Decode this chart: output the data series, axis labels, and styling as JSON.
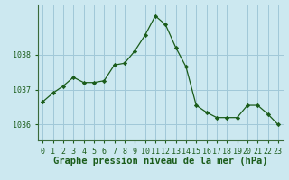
{
  "x": [
    0,
    1,
    2,
    3,
    4,
    5,
    6,
    7,
    8,
    9,
    10,
    11,
    12,
    13,
    14,
    15,
    16,
    17,
    18,
    19,
    20,
    21,
    22,
    23
  ],
  "y": [
    1036.65,
    1036.9,
    1037.1,
    1037.35,
    1037.2,
    1037.2,
    1037.25,
    1037.7,
    1037.75,
    1038.1,
    1038.55,
    1039.1,
    1038.85,
    1038.2,
    1037.65,
    1036.55,
    1036.35,
    1036.2,
    1036.2,
    1036.2,
    1036.55,
    1036.55,
    1036.3,
    1036.0
  ],
  "line_color": "#1a5c1a",
  "marker": "D",
  "marker_size": 2.2,
  "bg_color": "#cce8f0",
  "grid_color": "#a0c8d8",
  "xlabel": "Graphe pression niveau de la mer (hPa)",
  "xlabel_fontsize": 7.5,
  "tick_color": "#1a5c1a",
  "tick_fontsize": 6.0,
  "yticks": [
    1036,
    1037,
    1038
  ],
  "ylim": [
    1035.55,
    1039.4
  ],
  "xlim": [
    -0.5,
    23.5
  ]
}
